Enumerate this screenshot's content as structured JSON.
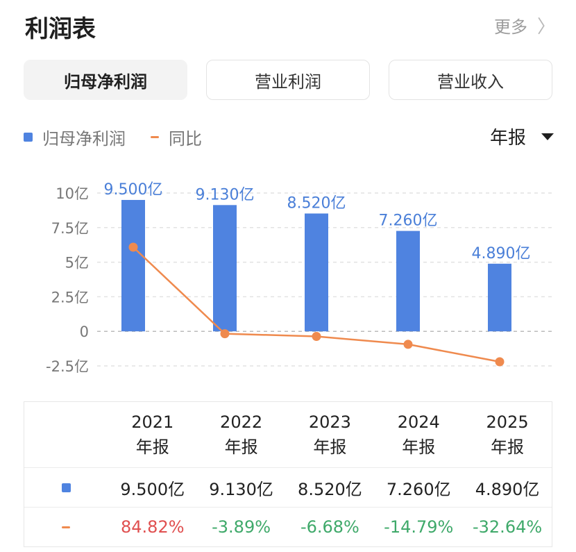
{
  "header": {
    "title": "利润表",
    "more_label": "更多",
    "more_chevron": "〉"
  },
  "tabs": [
    {
      "label": "归母净利润",
      "active": true
    },
    {
      "label": "营业利润",
      "active": false
    },
    {
      "label": "营业收入",
      "active": false
    }
  ],
  "legend": {
    "series1": "归母净利润",
    "series2": "同比"
  },
  "period": {
    "label": "年报"
  },
  "colors": {
    "bar": "#4f83e0",
    "line": "#ef8a4e",
    "up": "#e05050",
    "down": "#3fa96a"
  },
  "chart_data": {
    "type": "bar",
    "categories": [
      "2021",
      "2022",
      "2023",
      "2024",
      "2025"
    ],
    "y_ticks": [
      "10亿",
      "7.5亿",
      "5亿",
      "2.5亿",
      "0",
      "-2.5亿"
    ],
    "ylim": [
      -2.5,
      10
    ],
    "grid": true,
    "series": [
      {
        "name": "归母净利润",
        "type": "bar",
        "values": [
          9.5,
          9.13,
          8.52,
          7.26,
          4.89
        ],
        "labels": [
          "9.500亿",
          "9.130亿",
          "8.520亿",
          "7.260亿",
          "4.890亿"
        ]
      },
      {
        "name": "同比",
        "type": "line",
        "values": [
          84.82,
          -3.89,
          -6.68,
          -14.79,
          -32.64
        ]
      }
    ]
  },
  "table": {
    "header": [
      {
        "year": "2021",
        "period": "年报"
      },
      {
        "year": "2022",
        "period": "年报"
      },
      {
        "year": "2023",
        "period": "年报"
      },
      {
        "year": "2024",
        "period": "年报"
      },
      {
        "year": "2025",
        "period": "年报"
      }
    ],
    "profit_row": [
      "9.500亿",
      "9.130亿",
      "8.520亿",
      "7.260亿",
      "4.890亿"
    ],
    "yoy_row": [
      "84.82%",
      "-3.89%",
      "-6.68%",
      "-14.79%",
      "-32.64%"
    ]
  }
}
